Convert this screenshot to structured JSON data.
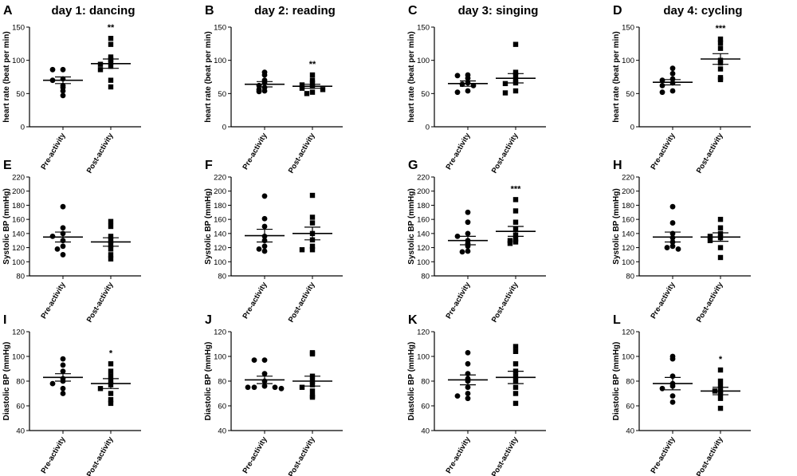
{
  "figure": {
    "categories": [
      "Pre-activity",
      "Post-activity"
    ],
    "columns": [
      {
        "title": "day 1: dancing"
      },
      {
        "title": "day 2: reading"
      },
      {
        "title": "day 3: singing"
      },
      {
        "title": "day 4: cycling"
      }
    ],
    "rows": [
      {
        "ylabel": "heart rate (beat per min)",
        "ylim": [
          0,
          150
        ],
        "ticks": [
          0,
          50,
          100,
          150
        ]
      },
      {
        "ylabel": "Systolic BP (mmHg)",
        "ylim": [
          80,
          220
        ],
        "ticks": [
          80,
          100,
          120,
          140,
          160,
          180,
          200,
          220
        ]
      },
      {
        "ylabel": "Diastolic BP (mmHg)",
        "ylim": [
          40,
          120
        ],
        "ticks": [
          40,
          60,
          80,
          100,
          120
        ]
      }
    ]
  },
  "chart_data": [
    {
      "type": "scatter",
      "panel": "A",
      "title": "day 1: dancing",
      "ylabel": "heart rate (beat per min)",
      "categories": [
        "Pre-activity",
        "Post-activity"
      ],
      "ylim": [
        0,
        150
      ],
      "series": [
        {
          "name": "Pre-activity",
          "values": [
            86,
            86,
            72,
            70,
            62,
            59,
            54,
            47
          ],
          "mean": 70,
          "sem": 5,
          "marker": "circle"
        },
        {
          "name": "Post-activity",
          "values": [
            133,
            124,
            105,
            101,
            97,
            94,
            91,
            86,
            70,
            60
          ],
          "mean": 95,
          "sem": 7,
          "marker": "square",
          "significance": "**"
        }
      ]
    },
    {
      "type": "scatter",
      "panel": "B",
      "title": "day 2: reading",
      "ylabel": "heart rate (beat per min)",
      "categories": [
        "Pre-activity",
        "Post-activity"
      ],
      "ylim": [
        0,
        150
      ],
      "series": [
        {
          "name": "Pre-activity",
          "values": [
            82,
            78,
            70,
            66,
            62,
            59,
            56,
            54,
            53
          ],
          "mean": 64,
          "sem": 4,
          "marker": "circle"
        },
        {
          "name": "Post-activity",
          "values": [
            78,
            70,
            66,
            63,
            61,
            58,
            56,
            52,
            50
          ],
          "mean": 61,
          "sem": 3,
          "marker": "square",
          "significance": "**"
        }
      ]
    },
    {
      "type": "scatter",
      "panel": "C",
      "title": "day 3: singing",
      "ylabel": "heart rate (beat per min)",
      "categories": [
        "Pre-activity",
        "Post-activity"
      ],
      "ylim": [
        0,
        150
      ],
      "series": [
        {
          "name": "Pre-activity",
          "values": [
            78,
            77,
            73,
            66,
            64,
            62,
            54,
            52
          ],
          "mean": 65,
          "sem": 4,
          "marker": "circle"
        },
        {
          "name": "Post-activity",
          "values": [
            124,
            82,
            78,
            71,
            66,
            65,
            54,
            51
          ],
          "mean": 73,
          "sem": 7,
          "marker": "square"
        }
      ]
    },
    {
      "type": "scatter",
      "panel": "D",
      "title": "day 4: cycling",
      "ylabel": "heart rate (beat per min)",
      "categories": [
        "Pre-activity",
        "Post-activity"
      ],
      "ylim": [
        0,
        150
      ],
      "series": [
        {
          "name": "Pre-activity",
          "values": [
            88,
            80,
            72,
            70,
            66,
            62,
            54,
            52
          ],
          "mean": 67,
          "sem": 4,
          "marker": "circle"
        },
        {
          "name": "Post-activity",
          "values": [
            132,
            126,
            118,
            100,
            96,
            87,
            74,
            71
          ],
          "mean": 102,
          "sem": 8,
          "marker": "square",
          "significance": "***"
        }
      ]
    },
    {
      "type": "scatter",
      "panel": "E",
      "title": "",
      "ylabel": "Systolic BP (mmHg)",
      "categories": [
        "Pre-activity",
        "Post-activity"
      ],
      "ylim": [
        80,
        220
      ],
      "series": [
        {
          "name": "Pre-activity",
          "values": [
            178,
            148,
            140,
            136,
            130,
            122,
            118,
            110
          ],
          "mean": 135,
          "sem": 7,
          "marker": "circle"
        },
        {
          "name": "Post-activity",
          "values": [
            157,
            150,
            136,
            130,
            124,
            118,
            110,
            104
          ],
          "mean": 128,
          "sem": 6,
          "marker": "square"
        }
      ]
    },
    {
      "type": "scatter",
      "panel": "F",
      "title": "",
      "ylabel": "Systolic BP (mmHg)",
      "categories": [
        "Pre-activity",
        "Post-activity"
      ],
      "ylim": [
        80,
        220
      ],
      "series": [
        {
          "name": "Pre-activity",
          "values": [
            193,
            161,
            150,
            136,
            130,
            122,
            118,
            115
          ],
          "mean": 137,
          "sem": 9,
          "marker": "circle"
        },
        {
          "name": "Post-activity",
          "values": [
            194,
            163,
            155,
            140,
            131,
            122,
            117,
            117
          ],
          "mean": 140,
          "sem": 9,
          "marker": "square"
        }
      ]
    },
    {
      "type": "scatter",
      "panel": "G",
      "title": "",
      "ylabel": "Systolic BP (mmHg)",
      "categories": [
        "Pre-activity",
        "Post-activity"
      ],
      "ylim": [
        80,
        220
      ],
      "series": [
        {
          "name": "Pre-activity",
          "values": [
            170,
            156,
            140,
            136,
            130,
            126,
            122,
            115,
            114
          ],
          "mean": 130,
          "sem": 6,
          "marker": "circle"
        },
        {
          "name": "Post-activity",
          "values": [
            188,
            172,
            156,
            146,
            138,
            132,
            130,
            128,
            126
          ],
          "mean": 143,
          "sem": 7,
          "marker": "square",
          "significance": "***"
        }
      ]
    },
    {
      "type": "scatter",
      "panel": "H",
      "title": "",
      "ylabel": "Systolic BP (mmHg)",
      "categories": [
        "Pre-activity",
        "Post-activity"
      ],
      "ylim": [
        80,
        220
      ],
      "series": [
        {
          "name": "Pre-activity",
          "values": [
            178,
            155,
            140,
            134,
            128,
            122,
            120,
            118
          ],
          "mean": 135,
          "sem": 7,
          "marker": "circle"
        },
        {
          "name": "Post-activity",
          "values": [
            160,
            148,
            140,
            136,
            134,
            130,
            120,
            106
          ],
          "mean": 135,
          "sem": 6,
          "marker": "square"
        }
      ]
    },
    {
      "type": "scatter",
      "panel": "I",
      "title": "",
      "ylabel": "Diastolic BP (mmHg)",
      "categories": [
        "Pre-activity",
        "Post-activity"
      ],
      "ylim": [
        40,
        120
      ],
      "series": [
        {
          "name": "Pre-activity",
          "values": [
            98,
            93,
            88,
            82,
            80,
            78,
            74,
            70
          ],
          "mean": 83,
          "sem": 3,
          "marker": "circle"
        },
        {
          "name": "Post-activity",
          "values": [
            94,
            88,
            84,
            80,
            77,
            74,
            70,
            65,
            62
          ],
          "mean": 78,
          "sem": 4,
          "marker": "square",
          "significance": "*"
        }
      ]
    },
    {
      "type": "scatter",
      "panel": "J",
      "title": "",
      "ylabel": "Diastolic BP (mmHg)",
      "categories": [
        "Pre-activity",
        "Post-activity"
      ],
      "ylim": [
        40,
        120
      ],
      "series": [
        {
          "name": "Pre-activity",
          "values": [
            97,
            97,
            86,
            80,
            76,
            75,
            75,
            75,
            74
          ],
          "mean": 81,
          "sem": 3,
          "marker": "circle"
        },
        {
          "name": "Post-activity",
          "values": [
            103,
            102,
            84,
            80,
            77,
            75,
            72,
            68,
            67
          ],
          "mean": 80,
          "sem": 4,
          "marker": "square"
        }
      ]
    },
    {
      "type": "scatter",
      "panel": "K",
      "title": "",
      "ylabel": "Diastolic BP (mmHg)",
      "categories": [
        "Pre-activity",
        "Post-activity"
      ],
      "ylim": [
        40,
        120
      ],
      "series": [
        {
          "name": "Pre-activity",
          "values": [
            103,
            94,
            86,
            82,
            80,
            75,
            70,
            68,
            66
          ],
          "mean": 81,
          "sem": 4,
          "marker": "circle"
        },
        {
          "name": "Post-activity",
          "values": [
            108,
            104,
            94,
            88,
            84,
            80,
            75,
            70,
            62
          ],
          "mean": 83,
          "sem": 5,
          "marker": "square"
        }
      ]
    },
    {
      "type": "scatter",
      "panel": "L",
      "title": "",
      "ylabel": "Diastolic BP (mmHg)",
      "categories": [
        "Pre-activity",
        "Post-activity"
      ],
      "ylim": [
        40,
        120
      ],
      "series": [
        {
          "name": "Pre-activity",
          "values": [
            100,
            98,
            84,
            78,
            76,
            74,
            68,
            63
          ],
          "mean": 78,
          "sem": 5,
          "marker": "circle"
        },
        {
          "name": "Post-activity",
          "values": [
            89,
            80,
            76,
            72,
            72,
            70,
            66,
            58
          ],
          "mean": 72,
          "sem": 3,
          "marker": "square",
          "significance": "*"
        }
      ]
    }
  ]
}
